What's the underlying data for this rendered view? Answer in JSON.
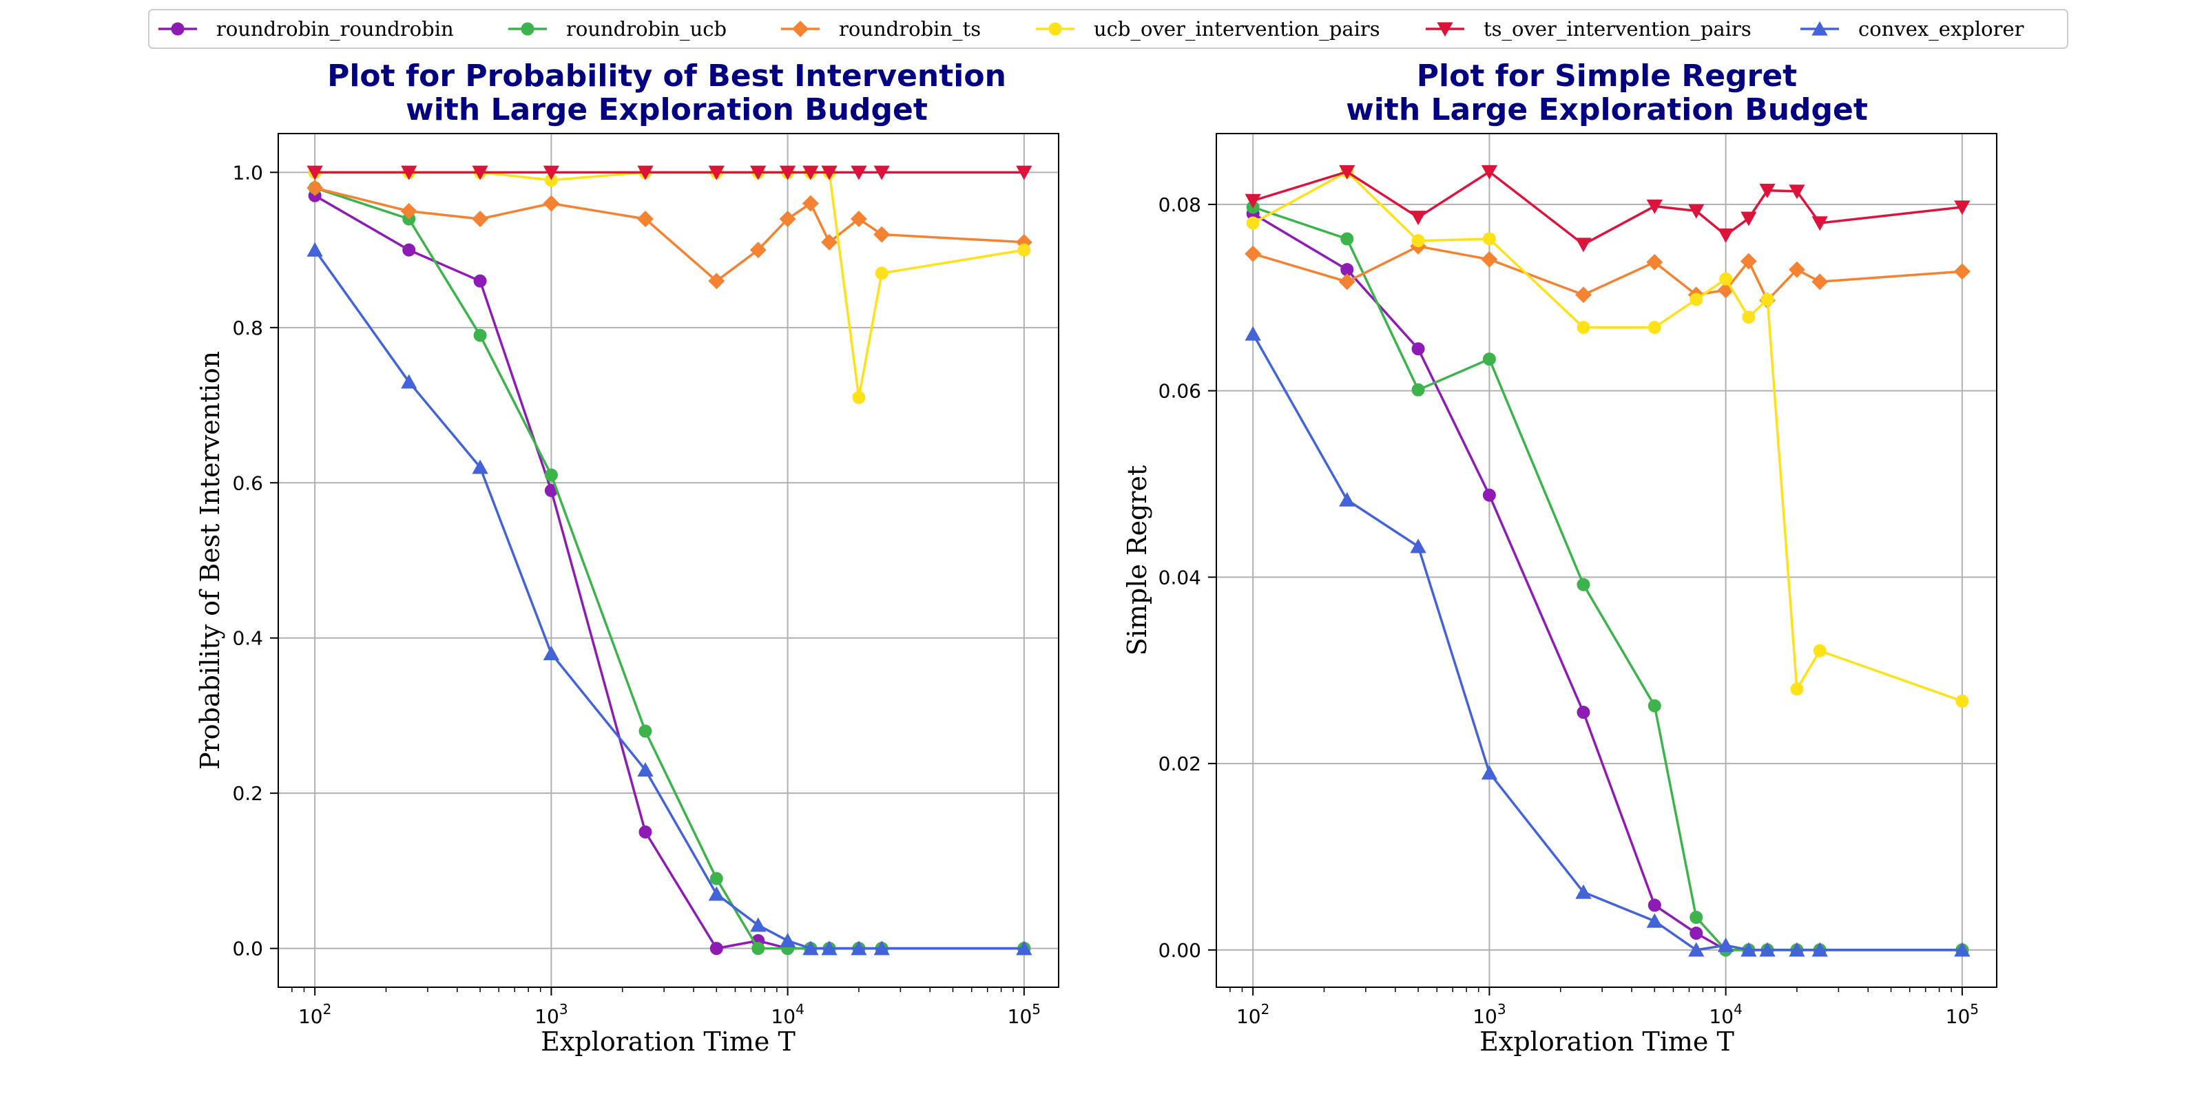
{
  "legend": {
    "location": "upper-center",
    "entries": [
      {
        "name": "roundrobin_roundrobin",
        "color": "#8e1cb4",
        "marker": "circle"
      },
      {
        "name": "roundrobin_ucb",
        "color": "#3cb44b",
        "marker": "circle"
      },
      {
        "name": "roundrobin_ts",
        "color": "#f58231",
        "marker": "diamond"
      },
      {
        "name": "ucb_over_intervention_pairs",
        "color": "#ffe119",
        "marker": "circle"
      },
      {
        "name": "ts_over_intervention_pairs",
        "color": "#dc143c",
        "marker": "triangle-down"
      },
      {
        "name": "convex_explorer",
        "color": "#4363d8",
        "marker": "triangle-up"
      }
    ]
  },
  "chart_data": [
    {
      "type": "line",
      "title": [
        "Plot for Probability of Best Intervention",
        "with Large Exploration Budget"
      ],
      "xlabel": "Exploration Time T",
      "ylabel": "Probability of Best Intervention",
      "xscale": "log",
      "xlim": [
        70,
        140000
      ],
      "ylim": [
        -0.05,
        1.05
      ],
      "xticks": [
        {
          "value": 100,
          "label": "10^2"
        },
        {
          "value": 1000,
          "label": "10^3"
        },
        {
          "value": 10000,
          "label": "10^4"
        },
        {
          "value": 100000,
          "label": "10^5"
        }
      ],
      "yticks": [
        {
          "value": 0,
          "label": "0.0"
        },
        {
          "value": 0.2,
          "label": "0.2"
        },
        {
          "value": 0.4,
          "label": "0.4"
        },
        {
          "value": 0.6,
          "label": "0.6"
        },
        {
          "value": 0.8,
          "label": "0.8"
        },
        {
          "value": 1.0,
          "label": "1.0"
        }
      ],
      "grid": true,
      "series": [
        {
          "name": "roundrobin_roundrobin",
          "x": [
            100,
            250,
            500,
            1000,
            2500,
            5000,
            7500,
            10000,
            12500,
            15000,
            20000,
            25000,
            100000
          ],
          "values": [
            0.97,
            0.9,
            0.86,
            0.59,
            0.15,
            0.0,
            0.01,
            0.0,
            0.0,
            0.0,
            0.0,
            0.0,
            0.0
          ]
        },
        {
          "name": "roundrobin_ucb",
          "x": [
            100,
            250,
            500,
            1000,
            2500,
            5000,
            7500,
            10000,
            12500,
            15000,
            20000,
            25000,
            100000
          ],
          "values": [
            0.98,
            0.94,
            0.79,
            0.61,
            0.28,
            0.09,
            0.0,
            0.0,
            0.0,
            0.0,
            0.0,
            0.0,
            0.0
          ]
        },
        {
          "name": "roundrobin_ts",
          "x": [
            100,
            250,
            500,
            1000,
            2500,
            5000,
            7500,
            10000,
            12500,
            15000,
            20000,
            25000,
            100000
          ],
          "values": [
            0.98,
            0.95,
            0.94,
            0.96,
            0.94,
            0.86,
            0.9,
            0.94,
            0.96,
            0.91,
            0.94,
            0.92,
            0.91
          ]
        },
        {
          "name": "ucb_over_intervention_pairs",
          "x": [
            100,
            250,
            500,
            1000,
            2500,
            5000,
            7500,
            10000,
            12500,
            15000,
            20000,
            25000,
            100000
          ],
          "values": [
            1.0,
            1.0,
            1.0,
            0.99,
            1.0,
            1.0,
            1.0,
            1.0,
            1.0,
            1.0,
            0.71,
            0.87,
            0.9
          ]
        },
        {
          "name": "ts_over_intervention_pairs",
          "x": [
            100,
            250,
            500,
            1000,
            2500,
            5000,
            7500,
            10000,
            12500,
            15000,
            20000,
            25000,
            100000
          ],
          "values": [
            1.0,
            1.0,
            1.0,
            1.0,
            1.0,
            1.0,
            1.0,
            1.0,
            1.0,
            1.0,
            1.0,
            1.0,
            1.0
          ]
        },
        {
          "name": "convex_explorer",
          "x": [
            100,
            250,
            500,
            1000,
            2500,
            5000,
            7500,
            10000,
            12500,
            15000,
            20000,
            25000,
            100000
          ],
          "values": [
            0.9,
            0.73,
            0.62,
            0.38,
            0.23,
            0.07,
            0.03,
            0.01,
            0.0,
            0.0,
            0.0,
            0.0,
            0.0
          ]
        }
      ]
    },
    {
      "type": "line",
      "title": [
        "Plot for Simple Regret",
        "with Large Exploration Budget"
      ],
      "xlabel": "Exploration Time T",
      "ylabel": "Simple Regret",
      "xscale": "log",
      "xlim": [
        70,
        140000
      ],
      "ylim": [
        -0.004,
        0.0876
      ],
      "xticks": [
        {
          "value": 100,
          "label": "10^2"
        },
        {
          "value": 1000,
          "label": "10^3"
        },
        {
          "value": 10000,
          "label": "10^4"
        },
        {
          "value": 100000,
          "label": "10^5"
        }
      ],
      "yticks": [
        {
          "value": 0,
          "label": "0.00"
        },
        {
          "value": 0.02,
          "label": "0.02"
        },
        {
          "value": 0.04,
          "label": "0.04"
        },
        {
          "value": 0.06,
          "label": "0.06"
        },
        {
          "value": 0.08,
          "label": "0.08"
        }
      ],
      "grid": true,
      "series": [
        {
          "name": "roundrobin_roundrobin",
          "x": [
            100,
            250,
            500,
            1000,
            2500,
            5000,
            7500,
            10000,
            12500,
            15000,
            20000,
            25000,
            100000
          ],
          "values": [
            0.079,
            0.073,
            0.0645,
            0.0488,
            0.0255,
            0.0048,
            0.0018,
            0.0,
            0.0,
            0.0,
            0.0,
            0.0,
            0.0
          ]
        },
        {
          "name": "roundrobin_ucb",
          "x": [
            100,
            250,
            500,
            1000,
            2500,
            5000,
            7500,
            10000,
            12500,
            15000,
            20000,
            25000,
            100000
          ],
          "values": [
            0.0797,
            0.0763,
            0.0601,
            0.0634,
            0.0392,
            0.0262,
            0.0035,
            0.0,
            0.0,
            0.0,
            0.0,
            0.0,
            0.0
          ]
        },
        {
          "name": "roundrobin_ts",
          "x": [
            100,
            250,
            500,
            1000,
            2500,
            5000,
            7500,
            10000,
            12500,
            15000,
            20000,
            25000,
            100000
          ],
          "values": [
            0.0747,
            0.0717,
            0.0755,
            0.0741,
            0.0703,
            0.0738,
            0.0703,
            0.0708,
            0.0739,
            0.0697,
            0.073,
            0.0717,
            0.0728
          ]
        },
        {
          "name": "ucb_over_intervention_pairs",
          "x": [
            100,
            250,
            500,
            1000,
            2500,
            5000,
            7500,
            10000,
            12500,
            15000,
            20000,
            25000,
            100000
          ],
          "values": [
            0.078,
            0.0835,
            0.0761,
            0.0763,
            0.0668,
            0.0668,
            0.0698,
            0.072,
            0.0679,
            0.0698,
            0.028,
            0.0321,
            0.0267
          ]
        },
        {
          "name": "ts_over_intervention_pairs",
          "x": [
            100,
            250,
            500,
            1000,
            2500,
            5000,
            7500,
            10000,
            12500,
            15000,
            20000,
            25000,
            100000
          ],
          "values": [
            0.0804,
            0.0835,
            0.0786,
            0.0835,
            0.0757,
            0.0798,
            0.0793,
            0.0767,
            0.0785,
            0.0815,
            0.0814,
            0.078,
            0.0797
          ]
        },
        {
          "name": "convex_explorer",
          "x": [
            100,
            250,
            500,
            1000,
            2500,
            5000,
            7500,
            10000,
            12500,
            15000,
            20000,
            25000,
            100000
          ],
          "values": [
            0.0661,
            0.0483,
            0.0433,
            0.019,
            0.0062,
            0.0031,
            0.0,
            0.0005,
            0.0,
            0.0,
            0.0,
            0.0,
            0.0
          ]
        }
      ]
    }
  ]
}
